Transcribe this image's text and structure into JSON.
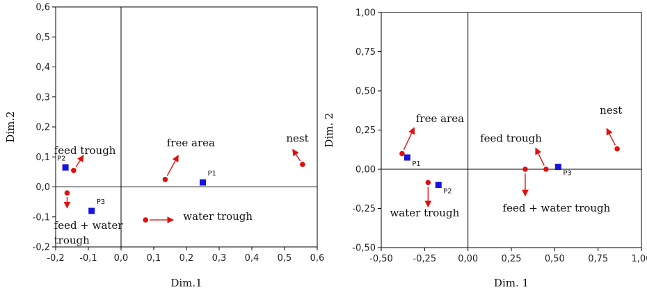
{
  "chart_data": [
    {
      "type": "scatter",
      "xlabel": "Dim.1",
      "ylabel": "Dim.2",
      "xlim": [
        -0.2,
        0.6
      ],
      "ylim": [
        -0.2,
        0.6
      ],
      "x_ticks": [
        "-0,2",
        "-0,1",
        "0,0",
        "0,1",
        "0,2",
        "0,3",
        "0,4",
        "0,5",
        "0,6"
      ],
      "x_tick_values": [
        -0.2,
        -0.1,
        0.0,
        0.1,
        0.2,
        0.3,
        0.4,
        0.5,
        0.6
      ],
      "y_ticks": [
        "0,6",
        "0,5",
        "0,4",
        "0,3",
        "0,2",
        "0,1",
        "0,0",
        "-0,1",
        "-0,2"
      ],
      "y_tick_values": [
        0.6,
        0.5,
        0.4,
        0.3,
        0.2,
        0.1,
        0.0,
        -0.1,
        -0.2
      ],
      "series": [
        {
          "marker": "square",
          "color": "#1515e0",
          "points": [
            {
              "label": "P1",
              "x": 0.25,
              "y": 0.015
            },
            {
              "label": "P2",
              "x": -0.17,
              "y": 0.065
            },
            {
              "label": "P3",
              "x": -0.09,
              "y": -0.08
            }
          ]
        },
        {
          "marker": "dot",
          "color": "#e01010",
          "points": [
            {
              "label": "free area",
              "x": 0.135,
              "y": 0.025,
              "arrow": [
                0.175,
                0.105
              ]
            },
            {
              "label": "nest",
              "x": 0.555,
              "y": 0.075,
              "arrow": [
                0.525,
                0.125
              ]
            },
            {
              "label": "feed trough",
              "x": -0.145,
              "y": 0.055,
              "arrow": [
                -0.115,
                0.105
              ]
            },
            {
              "label": "feed + water trough",
              "x": -0.165,
              "y": -0.02,
              "arrow": [
                -0.165,
                -0.07
              ]
            },
            {
              "label": "water trough",
              "x": 0.075,
              "y": -0.11,
              "arrow": [
                0.16,
                -0.11
              ]
            }
          ]
        }
      ],
      "annotations": [
        {
          "text": "feed trough",
          "x": -0.205,
          "y": 0.11
        },
        {
          "text": "free area",
          "x": 0.14,
          "y": 0.135
        },
        {
          "text": "nest",
          "x": 0.505,
          "y": 0.15
        },
        {
          "text": "feed + water",
          "x": -0.205,
          "y": -0.14
        },
        {
          "text": "trough",
          "x": -0.205,
          "y": -0.19
        },
        {
          "text": "water trough",
          "x": 0.19,
          "y": -0.11
        }
      ]
    },
    {
      "type": "scatter",
      "xlabel": "Dim. 1",
      "ylabel": "Dim. 2",
      "xlim": [
        -0.5,
        1.0
      ],
      "ylim": [
        -0.5,
        1.0
      ],
      "x_ticks": [
        "-0,50",
        "-0,25",
        "0,00",
        "0,25",
        "0,50",
        "0,75",
        "1,00"
      ],
      "x_tick_values": [
        -0.5,
        -0.25,
        0.0,
        0.25,
        0.5,
        0.75,
        1.0
      ],
      "y_ticks": [
        "1,00",
        "0,75",
        "0,50",
        "0,25",
        "0,00",
        "-0,25",
        "-0,50"
      ],
      "y_tick_values": [
        1.0,
        0.75,
        0.5,
        0.25,
        0.0,
        -0.25,
        -0.5
      ],
      "series": [
        {
          "marker": "square",
          "color": "#1515e0",
          "points": [
            {
              "label": "P1",
              "x": -0.35,
              "y": 0.075
            },
            {
              "label": "P2",
              "x": -0.17,
              "y": -0.1
            },
            {
              "label": "P3",
              "x": 0.52,
              "y": 0.015
            }
          ]
        },
        {
          "marker": "dot",
          "color": "#e01010",
          "points": [
            {
              "label": "free area",
              "x": -0.38,
              "y": 0.1,
              "arrow": [
                -0.31,
                0.265
              ]
            },
            {
              "label": "nest",
              "x": 0.86,
              "y": 0.13,
              "arrow": [
                0.8,
                0.26
              ]
            },
            {
              "label": "feed trough",
              "x": 0.45,
              "y": 0.0,
              "arrow": [
                0.39,
                0.135
              ]
            },
            {
              "label": "feed + water trough",
              "x": 0.33,
              "y": 0.0,
              "arrow": [
                0.33,
                -0.17
              ]
            },
            {
              "label": "water trough",
              "x": -0.23,
              "y": -0.085,
              "arrow": [
                -0.23,
                -0.24
              ]
            }
          ]
        }
      ],
      "annotations": [
        {
          "text": "free area",
          "x": -0.3,
          "y": 0.3
        },
        {
          "text": "nest",
          "x": 0.76,
          "y": 0.355
        },
        {
          "text": "feed trough",
          "x": 0.07,
          "y": 0.175
        },
        {
          "text": "feed + water trough",
          "x": 0.2,
          "y": -0.27
        },
        {
          "text": "water trough",
          "x": -0.45,
          "y": -0.3
        }
      ]
    }
  ]
}
